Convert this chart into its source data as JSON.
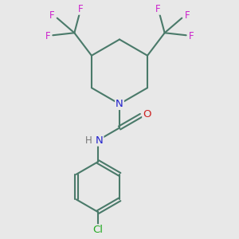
{
  "background_color": "#e8e8e8",
  "bond_color": "#4a7a6a",
  "N_color": "#2222cc",
  "O_color": "#cc2222",
  "F_color": "#cc22cc",
  "Cl_color": "#22aa22",
  "H_color": "#777777",
  "line_width": 1.5,
  "figsize": [
    3.0,
    3.0
  ],
  "dpi": 100,
  "xlim": [
    0,
    10
  ],
  "ylim": [
    0,
    10
  ]
}
